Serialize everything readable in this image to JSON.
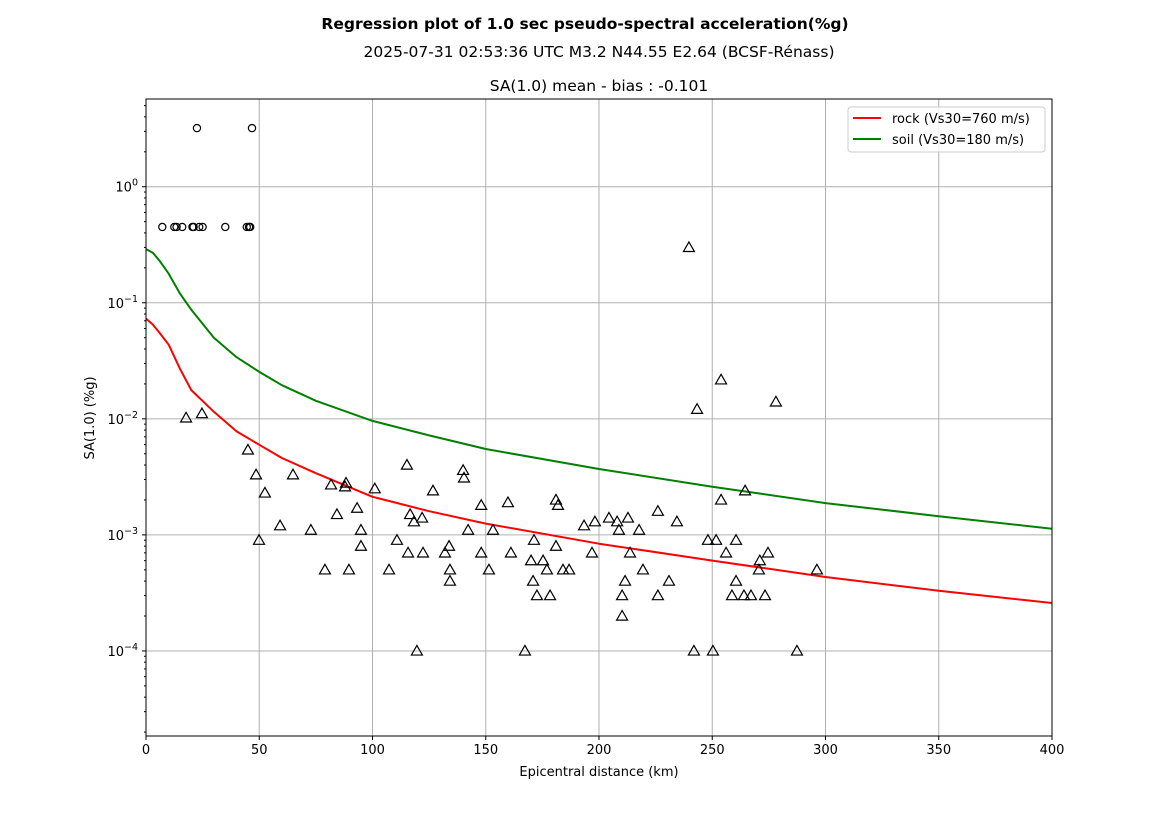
{
  "chart_data": {
    "type": "scatter",
    "title": "Regression plot of 1.0 sec pseudo-spectral acceleration(%g)",
    "subtitle": "2025-07-31 02:53:36 UTC M3.2 N44.55 E2.64 (BCSF-Rénass)",
    "axes_title": "SA(1.0) mean - bias : -0.101",
    "xlabel": "Epicentral distance (km)",
    "ylabel": "SA(1.0) (%g)",
    "xlim": [
      0,
      400
    ],
    "ylim": [
      1.85e-05,
      5.7
    ],
    "yscale": "log",
    "grid": true,
    "legend_position": "top-right",
    "xticks": [
      0,
      50,
      100,
      150,
      200,
      250,
      300,
      350,
      400
    ],
    "yticks": [
      {
        "value": 1,
        "base": "10",
        "exp": "0"
      },
      {
        "value": 0.1,
        "base": "10",
        "exp": "−1"
      },
      {
        "value": 0.01,
        "base": "10",
        "exp": "−2"
      },
      {
        "value": 0.001,
        "base": "10",
        "exp": "−3"
      },
      {
        "value": 0.0001,
        "base": "10",
        "exp": "−4"
      }
    ],
    "lines": [
      {
        "name": "rock (Vs30=760 m/s)",
        "color": "#ff0000",
        "x": [
          0,
          3,
          6,
          10,
          15,
          20,
          30,
          40,
          50,
          60,
          75,
          100,
          125,
          150,
          200,
          250,
          300,
          350,
          400
        ],
        "y": [
          0.073,
          0.065,
          0.055,
          0.0435,
          0.027,
          0.0177,
          0.0115,
          0.0078,
          0.00597,
          0.0046,
          0.0034,
          0.00213,
          0.0016,
          0.00125,
          0.00084,
          0.0006,
          0.000434,
          0.00033,
          0.000259
        ]
      },
      {
        "name": "soil (Vs30=180 m/s)",
        "color": "#008000",
        "x": [
          0,
          3,
          6,
          10,
          15,
          20,
          30,
          40,
          50,
          60,
          75,
          100,
          125,
          150,
          200,
          250,
          300,
          350,
          400
        ],
        "y": [
          0.29,
          0.27,
          0.23,
          0.178,
          0.12,
          0.087,
          0.05,
          0.034,
          0.0254,
          0.0195,
          0.0143,
          0.0096,
          0.0072,
          0.0055,
          0.0037,
          0.0026,
          0.00188,
          0.00145,
          0.00113
        ]
      }
    ],
    "series": [
      {
        "name": "circles",
        "marker": "circle",
        "points": [
          [
            7.2,
            0.45
          ],
          [
            12.5,
            0.45
          ],
          [
            13.5,
            0.45
          ],
          [
            16,
            0.45
          ],
          [
            20.5,
            0.45
          ],
          [
            21,
            0.45
          ],
          [
            23.5,
            0.45
          ],
          [
            25,
            0.45
          ],
          [
            35,
            0.45
          ],
          [
            44.5,
            0.45
          ],
          [
            45.5,
            0.45
          ],
          [
            46,
            0.45
          ],
          [
            22.5,
            3.2
          ],
          [
            46.8,
            3.2
          ]
        ]
      },
      {
        "name": "triangles",
        "marker": "triangle",
        "points": [
          [
            17.7,
            0.0102
          ],
          [
            24.7,
            0.0111
          ],
          [
            45,
            0.0054
          ],
          [
            48.6,
            0.0033
          ],
          [
            52.5,
            0.0023
          ],
          [
            49.9,
            0.0009
          ],
          [
            59.2,
            0.0012
          ],
          [
            64.9,
            0.0033
          ],
          [
            72.8,
            0.0011
          ],
          [
            79,
            0.0005
          ],
          [
            81.7,
            0.0027
          ],
          [
            84.3,
            0.0015
          ],
          [
            87.9,
            0.0026
          ],
          [
            88.3,
            0.0028
          ],
          [
            89.6,
            0.0005
          ],
          [
            93.2,
            0.0017
          ],
          [
            94.9,
            0.0011
          ],
          [
            94.9,
            0.0008
          ],
          [
            101,
            0.0025
          ],
          [
            107.3,
            0.0005
          ],
          [
            110.8,
            0.0009
          ],
          [
            115.2,
            0.004
          ],
          [
            115.7,
            0.0007
          ],
          [
            116.6,
            0.0015
          ],
          [
            118.3,
            0.0013
          ],
          [
            119.6,
            0.0001
          ],
          [
            121.9,
            0.0014
          ],
          [
            122.3,
            0.0007
          ],
          [
            126.7,
            0.0024
          ],
          [
            132,
            0.0007
          ],
          [
            133.8,
            0.0008
          ],
          [
            134.2,
            0.0005
          ],
          [
            134.2,
            0.0004
          ],
          [
            140,
            0.0036
          ],
          [
            140.4,
            0.0031
          ],
          [
            142.2,
            0.0011
          ],
          [
            148,
            0.0018
          ],
          [
            148,
            0.0007
          ],
          [
            151.4,
            0.0005
          ],
          [
            153.2,
            0.0011
          ],
          [
            159.8,
            0.0019
          ],
          [
            161.1,
            0.0007
          ],
          [
            167.3,
            0.0001
          ],
          [
            170,
            0.0006
          ],
          [
            170.9,
            0.0004
          ],
          [
            171.3,
            0.0009
          ],
          [
            172.6,
            0.0003
          ],
          [
            175.3,
            0.0006
          ],
          [
            177,
            0.0005
          ],
          [
            178.4,
            0.0003
          ],
          [
            181,
            0.0008
          ],
          [
            181,
            0.002
          ],
          [
            181.9,
            0.0018
          ],
          [
            184.1,
            0.0005
          ],
          [
            186.8,
            0.0005
          ],
          [
            193.4,
            0.0012
          ],
          [
            196.9,
            0.0007
          ],
          [
            198.2,
            0.0013
          ],
          [
            204.4,
            0.0014
          ],
          [
            208,
            0.0013
          ],
          [
            208.8,
            0.0011
          ],
          [
            210.2,
            0.0003
          ],
          [
            210.2,
            0.0002
          ],
          [
            211.5,
            0.0004
          ],
          [
            212.8,
            0.0014
          ],
          [
            213.7,
            0.0007
          ],
          [
            217.7,
            0.0011
          ],
          [
            219.4,
            0.0005
          ],
          [
            226,
            0.0016
          ],
          [
            226,
            0.0003
          ],
          [
            230.9,
            0.0004
          ],
          [
            234.4,
            0.0013
          ],
          [
            239.7,
            0.3
          ],
          [
            241.9,
            0.0001
          ],
          [
            243.3,
            0.0121
          ],
          [
            248.1,
            0.0009
          ],
          [
            250.3,
            0.0001
          ],
          [
            251.7,
            0.0009
          ],
          [
            253.9,
            0.0217
          ],
          [
            253.9,
            0.002
          ],
          [
            256.1,
            0.0007
          ],
          [
            258.7,
            0.0003
          ],
          [
            260.5,
            0.0009
          ],
          [
            260.5,
            0.0004
          ],
          [
            264,
            0.0003
          ],
          [
            264.5,
            0.0024
          ],
          [
            267.1,
            0.0003
          ],
          [
            270.6,
            0.0005
          ],
          [
            271,
            0.0006
          ],
          [
            273.3,
            0.0003
          ],
          [
            274.6,
            0.0007
          ],
          [
            278.1,
            0.014
          ],
          [
            287.4,
            0.0001
          ],
          [
            296.2,
            0.0005
          ]
        ]
      }
    ],
    "legend": [
      {
        "label": "rock (Vs30=760 m/s)",
        "color": "#ff0000"
      },
      {
        "label": "soil (Vs30=180 m/s)",
        "color": "#008000"
      }
    ]
  }
}
